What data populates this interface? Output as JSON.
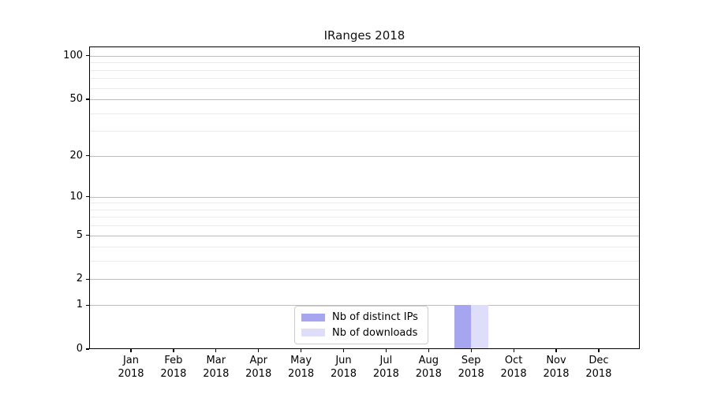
{
  "chart_data": {
    "type": "bar",
    "title": "IRanges 2018",
    "categories": [
      "Jan",
      "Feb",
      "Mar",
      "Apr",
      "May",
      "Jun",
      "Jul",
      "Aug",
      "Sep",
      "Oct",
      "Nov",
      "Dec"
    ],
    "category_year": "2018",
    "series": [
      {
        "name": "Nb of distinct IPs",
        "color": "#a5a5f0",
        "values": [
          0,
          0,
          0,
          0,
          0,
          0,
          0,
          0,
          1,
          0,
          0,
          0
        ]
      },
      {
        "name": "Nb of downloads",
        "color": "#dedefa",
        "values": [
          0,
          0,
          0,
          0,
          0,
          0,
          0,
          0,
          1,
          0,
          0,
          0
        ]
      }
    ],
    "yscale": "log1p",
    "ylim": [
      0,
      115
    ],
    "yticks": [
      0,
      1,
      2,
      5,
      10,
      20,
      50,
      100
    ],
    "minor_yticks": [
      3,
      4,
      6,
      7,
      8,
      9,
      30,
      40,
      60,
      70,
      80,
      90
    ],
    "xlabel": "",
    "ylabel": "",
    "grid": "horizontal",
    "legend_position": "lower-center",
    "colors": {
      "major_grid": "#bdbdbd",
      "minor_grid": "#ebebeb",
      "axis": "#000000",
      "background": "#ffffff"
    }
  }
}
